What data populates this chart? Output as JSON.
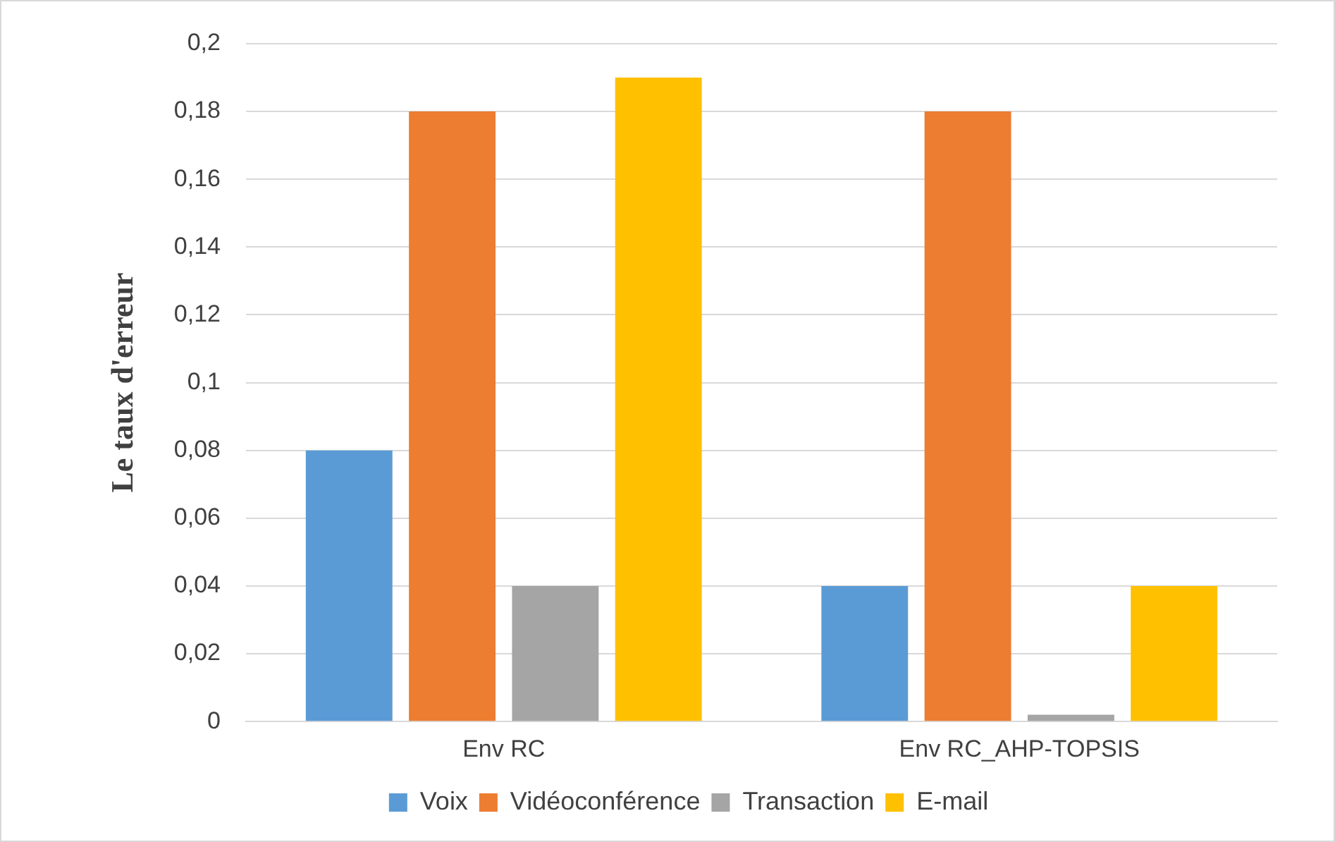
{
  "chart_data": {
    "type": "bar",
    "ylabel": "Le taux d'erreur",
    "categories": [
      "Env RC",
      "Env RC_AHP-TOPSIS"
    ],
    "series": [
      {
        "name": "Voix",
        "color": "#5b9bd5",
        "values": [
          0.08,
          0.04
        ]
      },
      {
        "name": "Vidéoconférence",
        "color": "#ed7d31",
        "values": [
          0.18,
          0.18
        ]
      },
      {
        "name": "Transaction",
        "color": "#a5a5a5",
        "values": [
          0.04,
          0.002
        ]
      },
      {
        "name": "E-mail",
        "color": "#ffc000",
        "values": [
          0.19,
          0.04
        ]
      }
    ],
    "ylim": [
      0,
      0.2
    ],
    "yticks": [
      0,
      {
        "value": 0.02,
        "label": "0,02"
      },
      {
        "value": 0.04,
        "label": "0,04"
      },
      {
        "value": 0.06,
        "label": "0,06"
      },
      {
        "value": 0.08,
        "label": "0,08"
      },
      {
        "value": 0.1,
        "label": "0,1"
      },
      {
        "value": 0.12,
        "label": "0,12"
      },
      {
        "value": 0.14,
        "label": "0,14"
      },
      {
        "value": 0.16,
        "label": "0,16"
      },
      {
        "value": 0.18,
        "label": "0,18"
      },
      {
        "value": 0.2,
        "label": "0,2"
      }
    ],
    "grid": "y",
    "legend": "bottom"
  }
}
